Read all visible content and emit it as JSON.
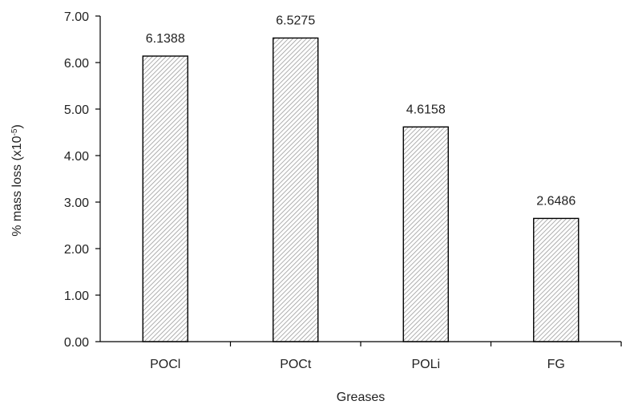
{
  "chart_data": {
    "type": "bar",
    "title": "",
    "xlabel": "Greases",
    "ylabel": {
      "prefix": "% mass loss (x10",
      "superscript": "-5",
      "suffix": ")"
    },
    "categories": [
      "POCl",
      "POCt",
      "POLi",
      "FG"
    ],
    "values": [
      6.1388,
      6.5275,
      4.6158,
      2.6486
    ],
    "data_labels": [
      "6.1388",
      "6.5275",
      "4.6158",
      "2.6486"
    ],
    "ylim": [
      0,
      7
    ],
    "yticks": [
      0,
      1,
      2,
      3,
      4,
      5,
      6,
      7
    ],
    "ytick_labels": [
      "0.00",
      "1.00",
      "2.00",
      "3.00",
      "4.00",
      "5.00",
      "6.00",
      "7.00"
    ],
    "grid": false,
    "legend": "none",
    "bar_fill": "diagonal-hatch",
    "colors": {
      "bar_edge": "#000000",
      "hatch_line": "#9a9a9a",
      "bar_background": "#ffffff",
      "axis": "#000000",
      "text": "#222222"
    }
  }
}
